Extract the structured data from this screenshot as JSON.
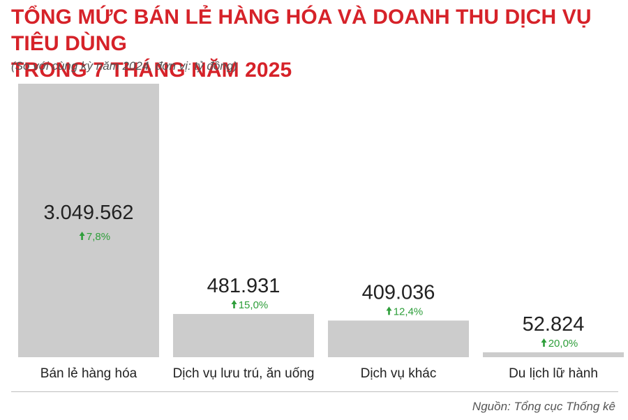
{
  "title_line1": "TỔNG MỨC BÁN LẺ HÀNG HÓA VÀ DOANH THU DỊCH VỤ TIÊU DÙNG",
  "title_line2": "TRONG 7 THÁNG NĂM 2025",
  "subtitle": "(So với cùng kỳ năm 2024, đơn vị: tỷ đồng)",
  "source": "Nguồn: Tổng cục Thống kê",
  "colors": {
    "title": "#d62229",
    "bar": "#cccccc",
    "growth": "#2e9e3a",
    "value": "#222222",
    "label": "#222222"
  },
  "chart_data": {
    "type": "bar",
    "categories": [
      "Bán lẻ hàng hóa",
      "Dịch vụ lưu trú, ăn uống",
      "Dịch vụ khác",
      "Du lịch lữ hành"
    ],
    "values": [
      3049562,
      481931,
      409036,
      52824
    ],
    "value_labels": [
      "3.049.562",
      "481.931",
      "409.036",
      "52.824"
    ],
    "growth_labels": [
      "7,8%",
      "15,0%",
      "12,4%",
      "20,0%"
    ],
    "growth_icon": "arrow-up-icon",
    "ylim": [
      0,
      3049562
    ],
    "grid": false
  }
}
